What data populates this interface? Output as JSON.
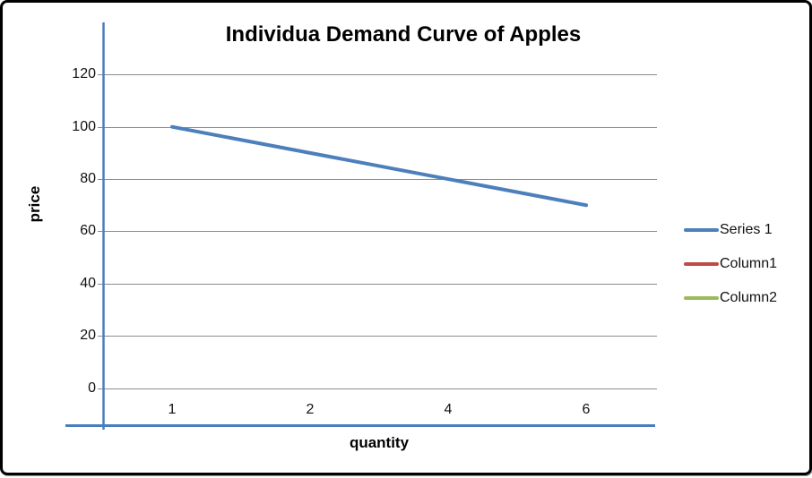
{
  "window": {
    "background": "#ffffff",
    "border_color": "#000000"
  },
  "chart_data": {
    "type": "line",
    "title": "Individua Demand Curve of Apples",
    "xlabel": "quantity",
    "ylabel": "price",
    "categories": [
      "1",
      "2",
      "4",
      "6"
    ],
    "series": [
      {
        "name": "Series 1",
        "color": "#4C7FBC",
        "values": [
          100,
          90,
          80,
          70
        ]
      },
      {
        "name": "Column1",
        "color": "#BE4B48",
        "values": []
      },
      {
        "name": "Column2",
        "color": "#9CBA5A",
        "values": []
      }
    ],
    "y_ticks": [
      0,
      20,
      40,
      60,
      80,
      100,
      120
    ],
    "ylim": [
      0,
      140
    ],
    "grid": true,
    "legend_position": "right",
    "axis_color": "#4A7EBB",
    "gridline_color": "#8C8C8C",
    "series_line_width": 4
  }
}
